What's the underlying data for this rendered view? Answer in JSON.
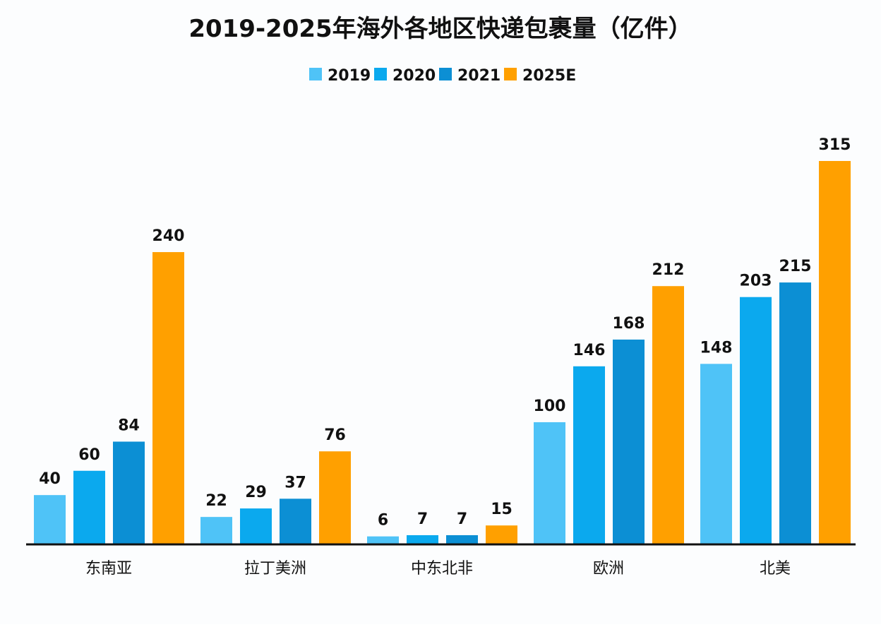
{
  "chart_data": {
    "type": "bar",
    "title": "2019-2025年海外各地区快递包裹量（亿件）",
    "categories": [
      "东南亚",
      "拉丁美洲",
      "中东北非",
      "欧洲",
      "北美"
    ],
    "series": [
      {
        "name": "2019",
        "color": "#4FC3F7",
        "values": [
          40,
          22,
          6,
          100,
          148
        ]
      },
      {
        "name": "2020",
        "color": "#0BA9EE",
        "values": [
          60,
          29,
          7,
          146,
          203
        ]
      },
      {
        "name": "2021",
        "color": "#0C8FD4",
        "values": [
          84,
          37,
          7,
          168,
          215
        ]
      },
      {
        "name": "2025E",
        "color": "#FFA000",
        "values": [
          240,
          76,
          15,
          212,
          315
        ]
      }
    ],
    "ylim": [
      0,
      315
    ],
    "grid": false,
    "legend_position": "top-center",
    "data_labels": true
  }
}
